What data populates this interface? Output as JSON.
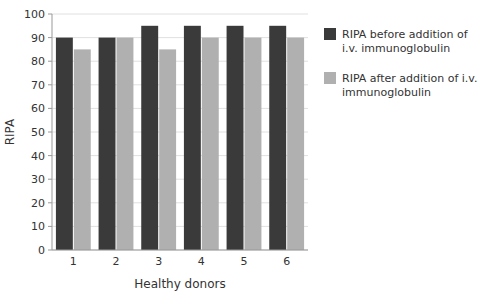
{
  "chart_data": {
    "type": "bar",
    "categories": [
      "1",
      "2",
      "3",
      "4",
      "5",
      "6"
    ],
    "series": [
      {
        "name": "RIPA before addition of\ni.v. immunoglobulin",
        "color": "#3a3a3a",
        "values": [
          90,
          90,
          95,
          95,
          95,
          95
        ]
      },
      {
        "name": "RIPA after addition of i.v.\nimmunoglobulin",
        "color": "#b0b0b0",
        "values": [
          85,
          90,
          85,
          90,
          90,
          90
        ]
      }
    ],
    "xlabel": "Healthy donors",
    "ylabel": "RIPA",
    "ylim": [
      0,
      100
    ],
    "yticks": [
      0,
      10,
      20,
      30,
      40,
      50,
      60,
      70,
      80,
      90,
      100
    ],
    "grid": true,
    "legend": "right"
  }
}
